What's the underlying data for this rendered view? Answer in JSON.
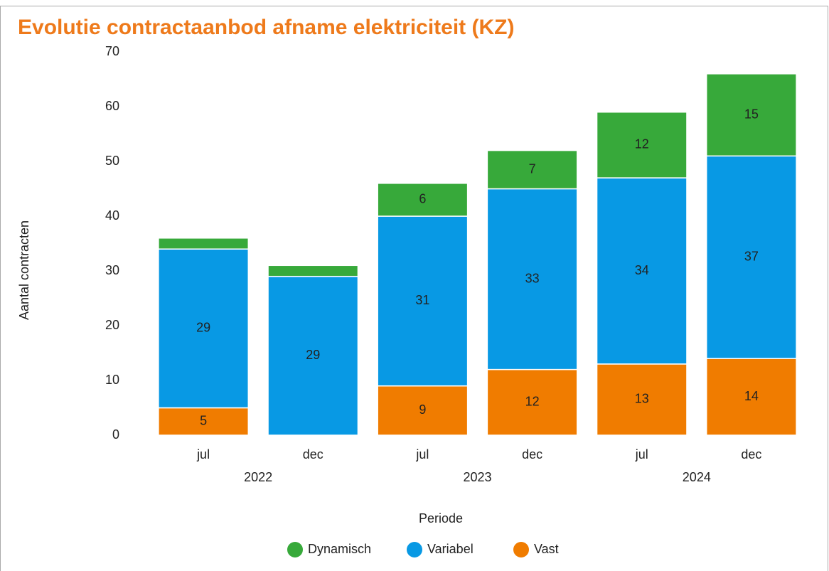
{
  "chart_data": {
    "type": "stacked_bar",
    "title": "Evolutie contractaanbod afname elektriciteit (KZ)",
    "y_label": "Aantal contracten",
    "x_label": "Periode",
    "categories": [
      "jul",
      "dec",
      "jul",
      "dec",
      "jul",
      "dec"
    ],
    "years": [
      "2022",
      "2023",
      "2024"
    ],
    "series": [
      {
        "name": "Dynamisch",
        "color": "#37a93a",
        "values": [
          2,
          2,
          6,
          7,
          12,
          15
        ]
      },
      {
        "name": "Variabel",
        "color": "#0899e4",
        "values": [
          29,
          29,
          31,
          33,
          34,
          37
        ]
      },
      {
        "name": "Vast",
        "color": "#f07c00",
        "values": [
          5,
          0,
          9,
          12,
          13,
          14
        ]
      }
    ],
    "ylim": [
      0,
      70
    ],
    "yticks": [
      0,
      10,
      20,
      30,
      40,
      50,
      60,
      70
    ],
    "grid": false
  }
}
